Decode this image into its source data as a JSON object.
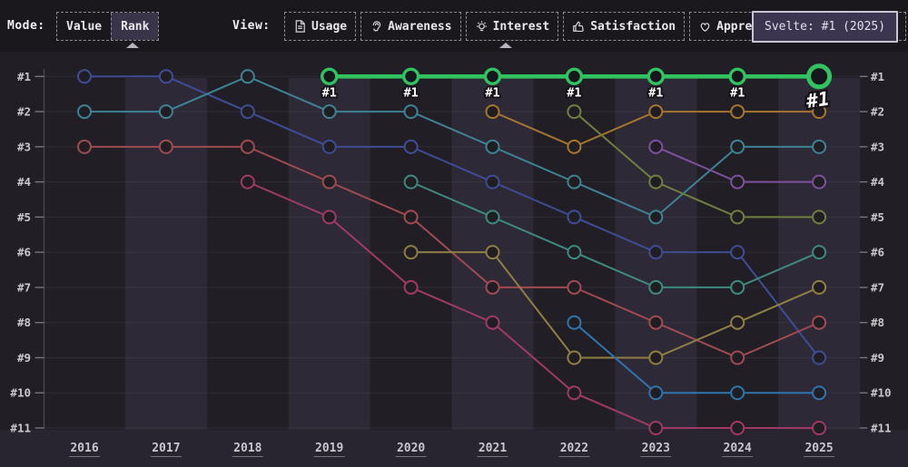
{
  "toolbar": {
    "mode": {
      "label": "Mode:",
      "options": [
        {
          "label": "Value",
          "selected": false
        },
        {
          "label": "Rank",
          "selected": true
        }
      ]
    },
    "view": {
      "label": "View:",
      "options": [
        {
          "label": "Usage",
          "icon": "document-icon",
          "selected": false
        },
        {
          "label": "Awareness",
          "icon": "ear-icon",
          "selected": false
        },
        {
          "label": "Interest",
          "icon": "lightbulb-icon",
          "selected": true
        },
        {
          "label": "Satisfaction",
          "icon": "thumbs-up-icon",
          "selected": false
        },
        {
          "label": "Appreciation",
          "icon": "heart-icon",
          "selected": false
        }
      ]
    },
    "tooltip": {
      "text": "Svelte: #1 (2025)"
    }
  },
  "chart_data": {
    "type": "line",
    "subtype": "bump-rank-chart",
    "years": [
      2016,
      2017,
      2018,
      2019,
      2020,
      2021,
      2022,
      2023,
      2024,
      2025
    ],
    "rank_axis_labels": [
      "#1",
      "#2",
      "#3",
      "#4",
      "#5",
      "#6",
      "#7",
      "#8",
      "#9",
      "#10",
      "#11"
    ],
    "ylim": [
      1,
      11
    ],
    "grid": true,
    "band_color": "#2d2936",
    "highlighted_series": {
      "name": "Svelte",
      "color": "#32c361",
      "ranks": [
        null,
        null,
        null,
        1,
        1,
        1,
        1,
        1,
        1,
        1
      ],
      "point_labels": [
        "#1",
        "#1",
        "#1",
        "#1",
        "#1",
        "#1",
        "#1"
      ]
    },
    "series": [
      {
        "name": "series-blue",
        "color": "#3f4c96",
        "ranks": [
          1,
          1,
          2,
          3,
          3,
          4,
          5,
          6,
          6,
          9
        ]
      },
      {
        "name": "series-teal",
        "color": "#3e8294",
        "ranks": [
          2,
          2,
          1,
          2,
          2,
          3,
          4,
          5,
          3,
          3
        ]
      },
      {
        "name": "series-red",
        "color": "#a04a52",
        "ranks": [
          3,
          3,
          3,
          4,
          5,
          7,
          7,
          8,
          9,
          8
        ]
      },
      {
        "name": "series-crimson",
        "color": "#a03a64",
        "ranks": [
          null,
          null,
          4,
          5,
          7,
          8,
          10,
          11,
          11,
          11
        ]
      },
      {
        "name": "series-dark-teal",
        "color": "#3f8a80",
        "ranks": [
          null,
          null,
          null,
          null,
          4,
          5,
          6,
          7,
          7,
          6
        ]
      },
      {
        "name": "series-olive",
        "color": "#8f7f44",
        "ranks": [
          null,
          null,
          null,
          null,
          6,
          6,
          9,
          9,
          8,
          7
        ]
      },
      {
        "name": "series-orange",
        "color": "#a5762e",
        "ranks": [
          null,
          null,
          null,
          null,
          null,
          2,
          3,
          2,
          2,
          2
        ]
      },
      {
        "name": "series-olive-green",
        "color": "#6f7f40",
        "ranks": [
          null,
          null,
          null,
          null,
          null,
          null,
          2,
          4,
          5,
          5
        ]
      },
      {
        "name": "series-light-blue",
        "color": "#2f74ad",
        "ranks": [
          null,
          null,
          null,
          null,
          null,
          null,
          8,
          10,
          10,
          10
        ]
      },
      {
        "name": "series-purple",
        "color": "#7d519e",
        "ranks": [
          null,
          null,
          null,
          null,
          null,
          null,
          null,
          3,
          4,
          4
        ]
      }
    ]
  }
}
